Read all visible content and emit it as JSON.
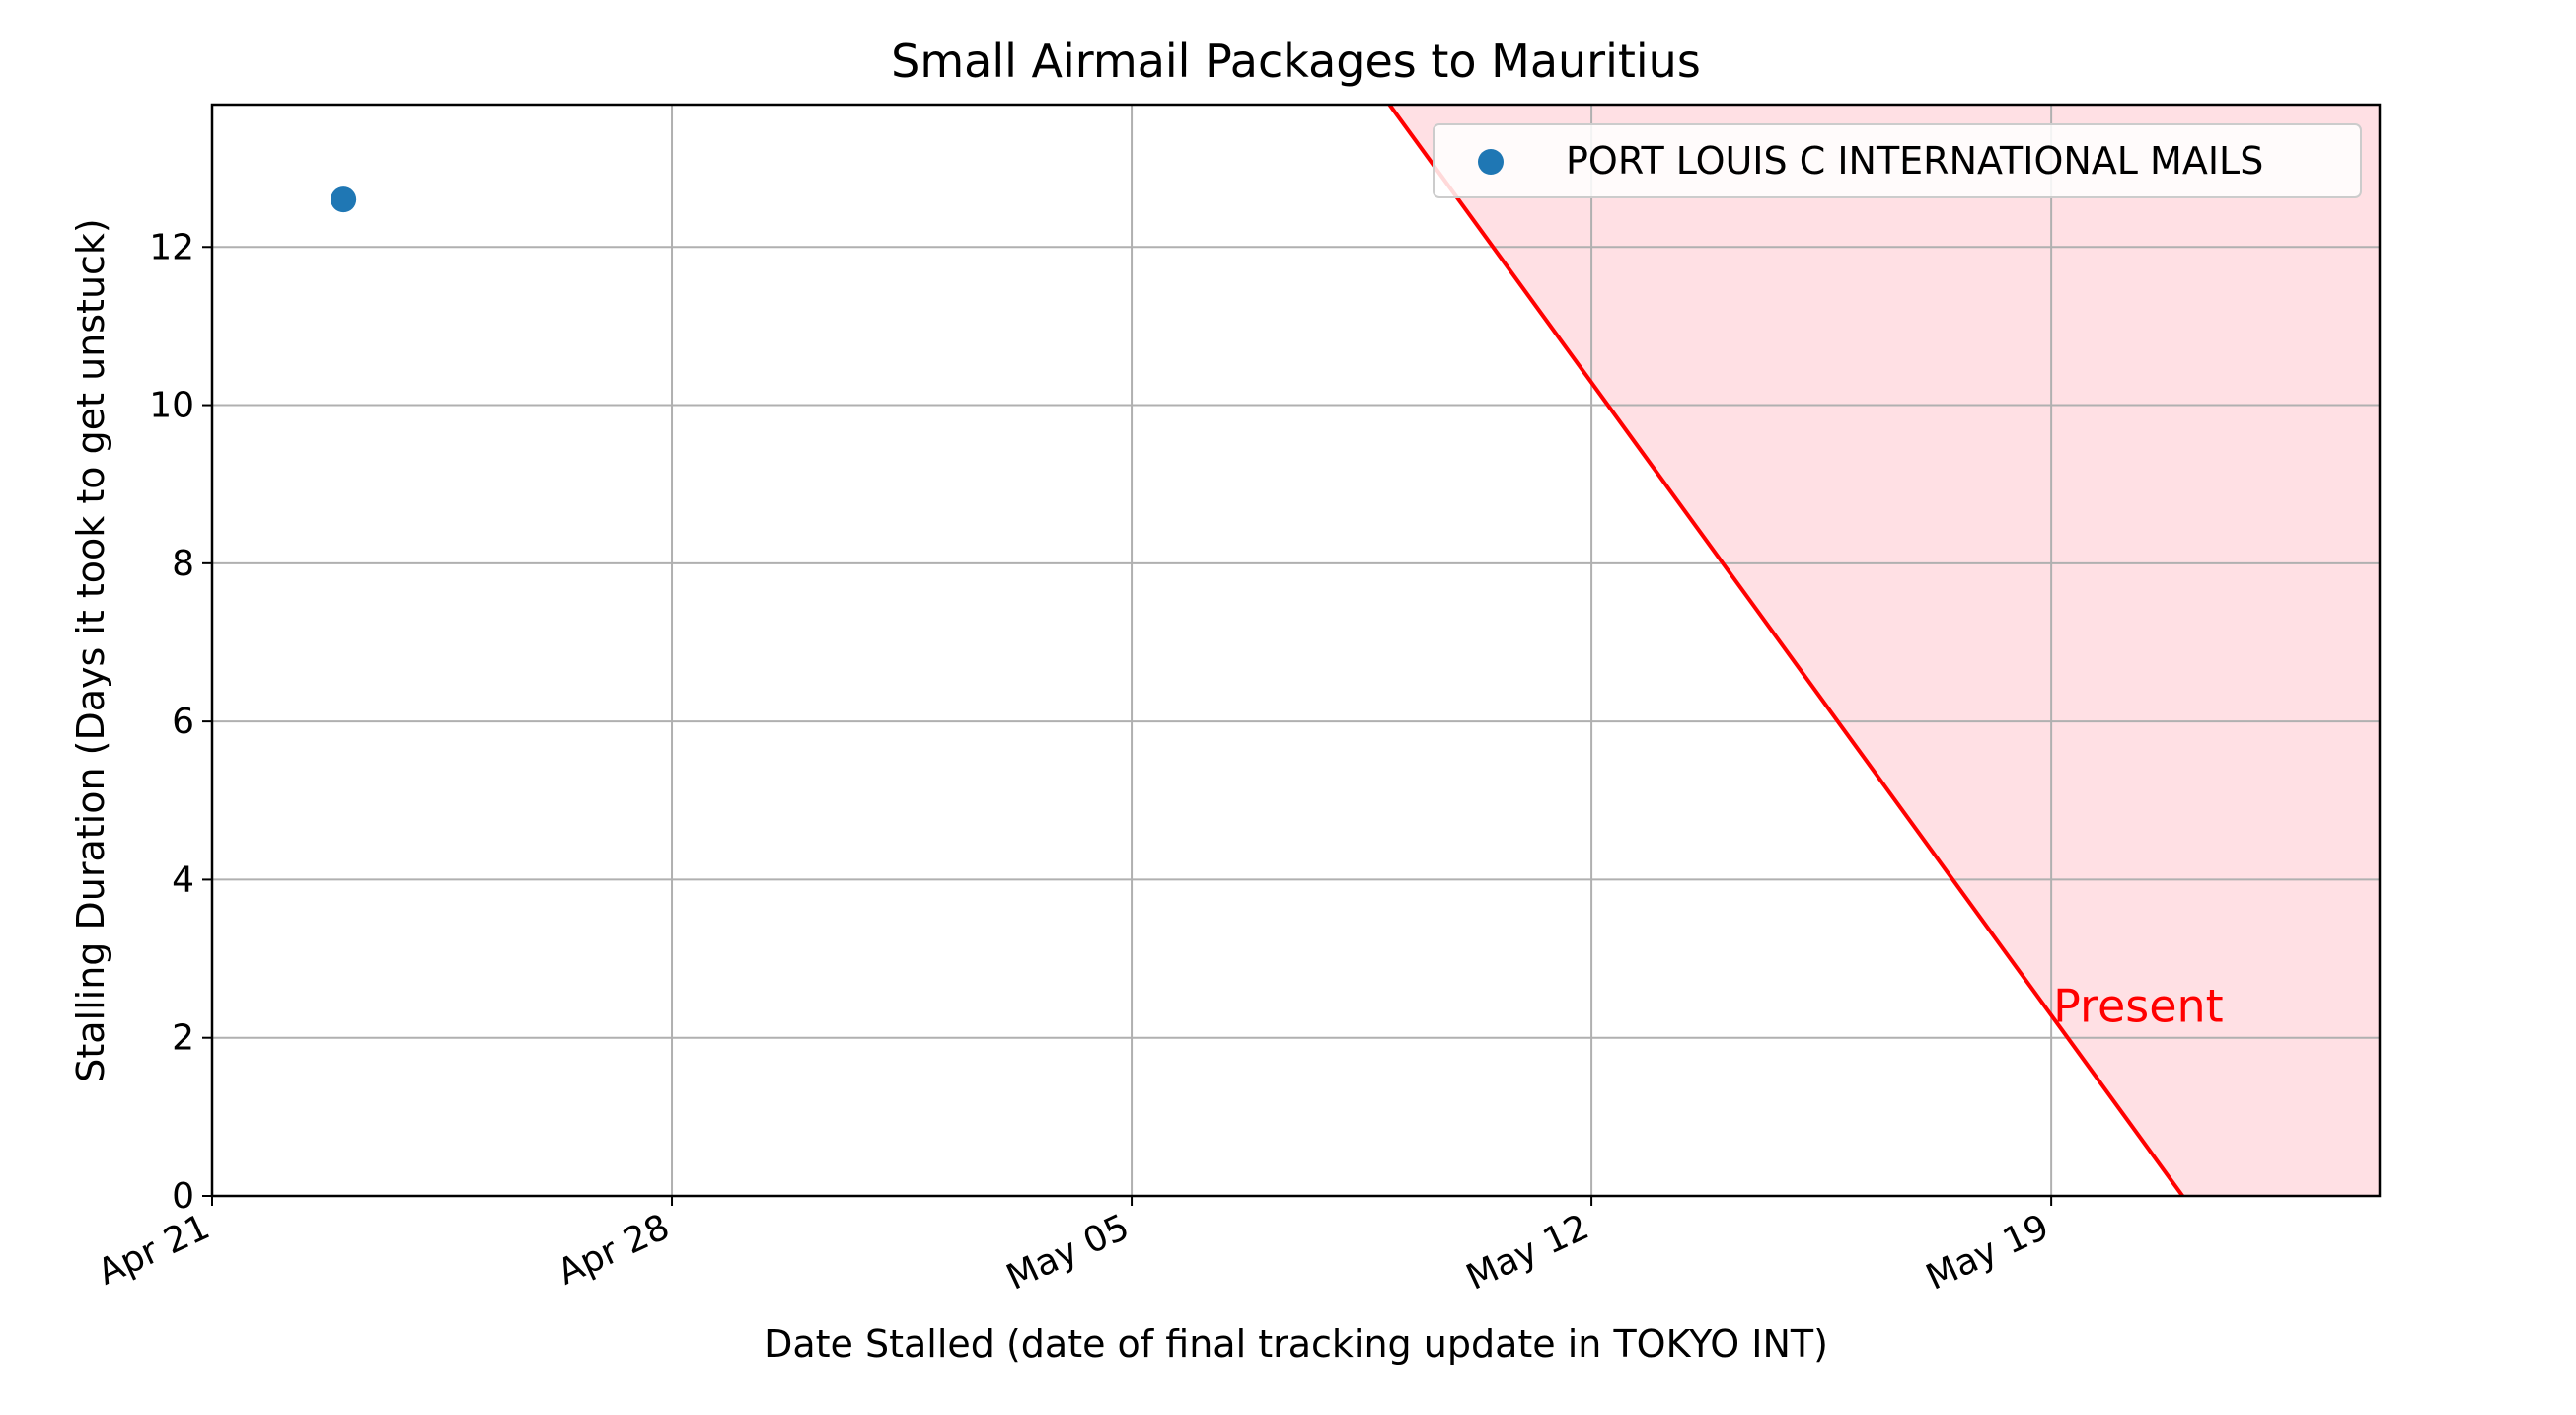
{
  "chart_data": {
    "type": "scatter",
    "title": "Small Airmail Packages to Mauritius",
    "xlabel": "Date Stalled (date of final tracking update in TOKYO INT)",
    "ylabel": "Stalling Duration (Days it took to get unstuck)",
    "x_axis_type": "date",
    "xlim": [
      "2021-04-21",
      "2021-05-24"
    ],
    "ylim": [
      0,
      13.8
    ],
    "x_ticks": [
      {
        "date": "2021-04-21",
        "label": "Apr 21"
      },
      {
        "date": "2021-04-28",
        "label": "Apr 28"
      },
      {
        "date": "2021-05-05",
        "label": "May 05"
      },
      {
        "date": "2021-05-12",
        "label": "May 12"
      },
      {
        "date": "2021-05-19",
        "label": "May 19"
      }
    ],
    "y_ticks": [
      0,
      2,
      4,
      6,
      8,
      10,
      12
    ],
    "grid": true,
    "legend_position": "top-right",
    "series": [
      {
        "name": "PORT LOUIS C INTERNATIONAL MAILS",
        "color": "#1f77b4",
        "points": [
          {
            "x": "2021-04-23",
            "y": 12.6
          }
        ]
      }
    ],
    "present_line": {
      "label": "Present",
      "color": "#ff0000",
      "shade_color": "#ffe0e4",
      "points": [
        {
          "x": "2021-05-07",
          "y": 16
        },
        {
          "x": "2021-05-21",
          "y": 0
        }
      ],
      "label_anchor": {
        "x": "2021-05-19",
        "y": 2
      }
    }
  }
}
